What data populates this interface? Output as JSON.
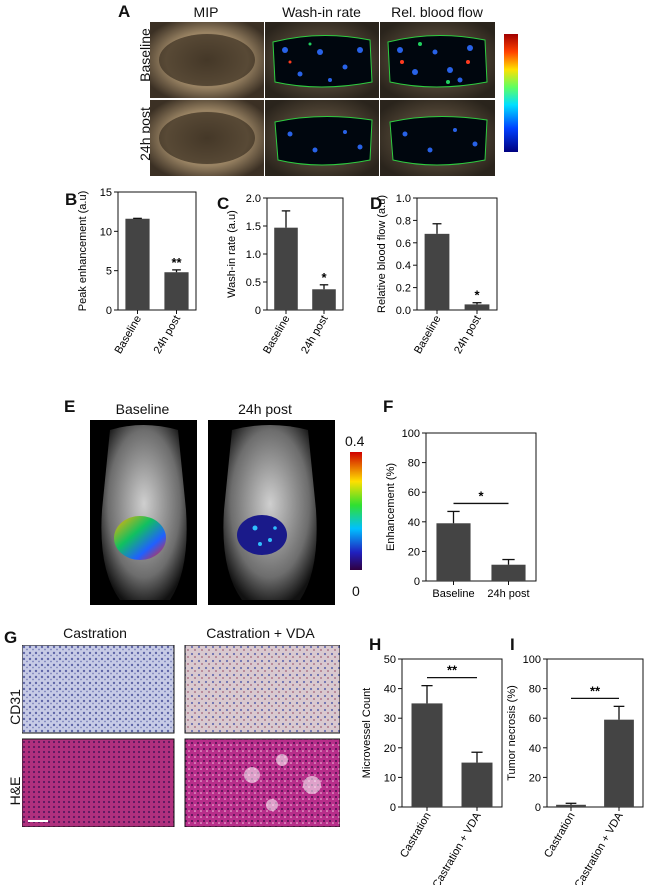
{
  "panels": {
    "A": {
      "letter": "A",
      "cols": [
        "MIP",
        "Wash-in rate",
        "Rel. blood flow"
      ],
      "rows": [
        "Baseline",
        "24h post"
      ]
    },
    "E": {
      "letter": "E",
      "cols": [
        "Baseline",
        "24h post"
      ],
      "scale_max": "0.4",
      "scale_min": "0"
    },
    "G": {
      "letter": "G",
      "cols": [
        "Castration",
        "Castration + VDA"
      ],
      "rows": [
        "CD31",
        "H&E"
      ]
    }
  },
  "colors": {
    "bar": "#444444",
    "tissue_brown": "#8a7658",
    "he_pink": "#c24a94",
    "cd31_blue": "#8c92c4"
  },
  "chart_data": [
    {
      "id": "B",
      "letter": "B",
      "type": "bar",
      "categories": [
        "Baseline",
        "24h post"
      ],
      "values": [
        11.6,
        4.8
      ],
      "errors": [
        0.05,
        0.3
      ],
      "ylabel": "Peak enhancement (a.u)",
      "ylim": [
        0,
        15
      ],
      "yticks": [
        0,
        5,
        10,
        15
      ],
      "signif": "**"
    },
    {
      "id": "C",
      "letter": "C",
      "type": "bar",
      "categories": [
        "Baseline",
        "24h post"
      ],
      "values": [
        1.47,
        0.37
      ],
      "errors": [
        0.3,
        0.08
      ],
      "ylabel": "Wash-in rate (a.u)",
      "ylim": [
        0,
        2.0
      ],
      "yticks": [
        0,
        0.5,
        1.0,
        1.5,
        2.0
      ],
      "signif": "*"
    },
    {
      "id": "D",
      "letter": "D",
      "type": "bar",
      "categories": [
        "Baseline",
        "24h post"
      ],
      "values": [
        0.68,
        0.05
      ],
      "errors": [
        0.09,
        0.015
      ],
      "ylabel": "Relative blood flow (a.u)",
      "ylim": [
        0,
        1.0
      ],
      "yticks": [
        0,
        0.2,
        0.4,
        0.6,
        0.8,
        1.0
      ],
      "signif": "*"
    },
    {
      "id": "F",
      "letter": "F",
      "type": "bar",
      "categories": [
        "Baseline",
        "24h post"
      ],
      "values": [
        39,
        11
      ],
      "errors": [
        8,
        3.5
      ],
      "ylabel": "Enhancement (%)",
      "ylim": [
        0,
        100
      ],
      "yticks": [
        0,
        20,
        40,
        60,
        80,
        100
      ],
      "signif": "*"
    },
    {
      "id": "H",
      "letter": "H",
      "type": "bar",
      "categories": [
        "Castration",
        "Castration + VDA"
      ],
      "values": [
        35,
        15
      ],
      "errors": [
        6,
        3.5
      ],
      "ylabel": "Microvessel Count",
      "ylim": [
        0,
        50
      ],
      "yticks": [
        0,
        10,
        20,
        30,
        40,
        50
      ],
      "signif": "**"
    },
    {
      "id": "I",
      "letter": "I",
      "type": "bar",
      "categories": [
        "Castration",
        "Castration + VDA"
      ],
      "values": [
        1.5,
        59
      ],
      "errors": [
        1,
        9
      ],
      "ylabel": "Tumor necrosis (%)",
      "ylim": [
        0,
        100
      ],
      "yticks": [
        0,
        20,
        40,
        60,
        80,
        100
      ],
      "signif": "**"
    }
  ]
}
